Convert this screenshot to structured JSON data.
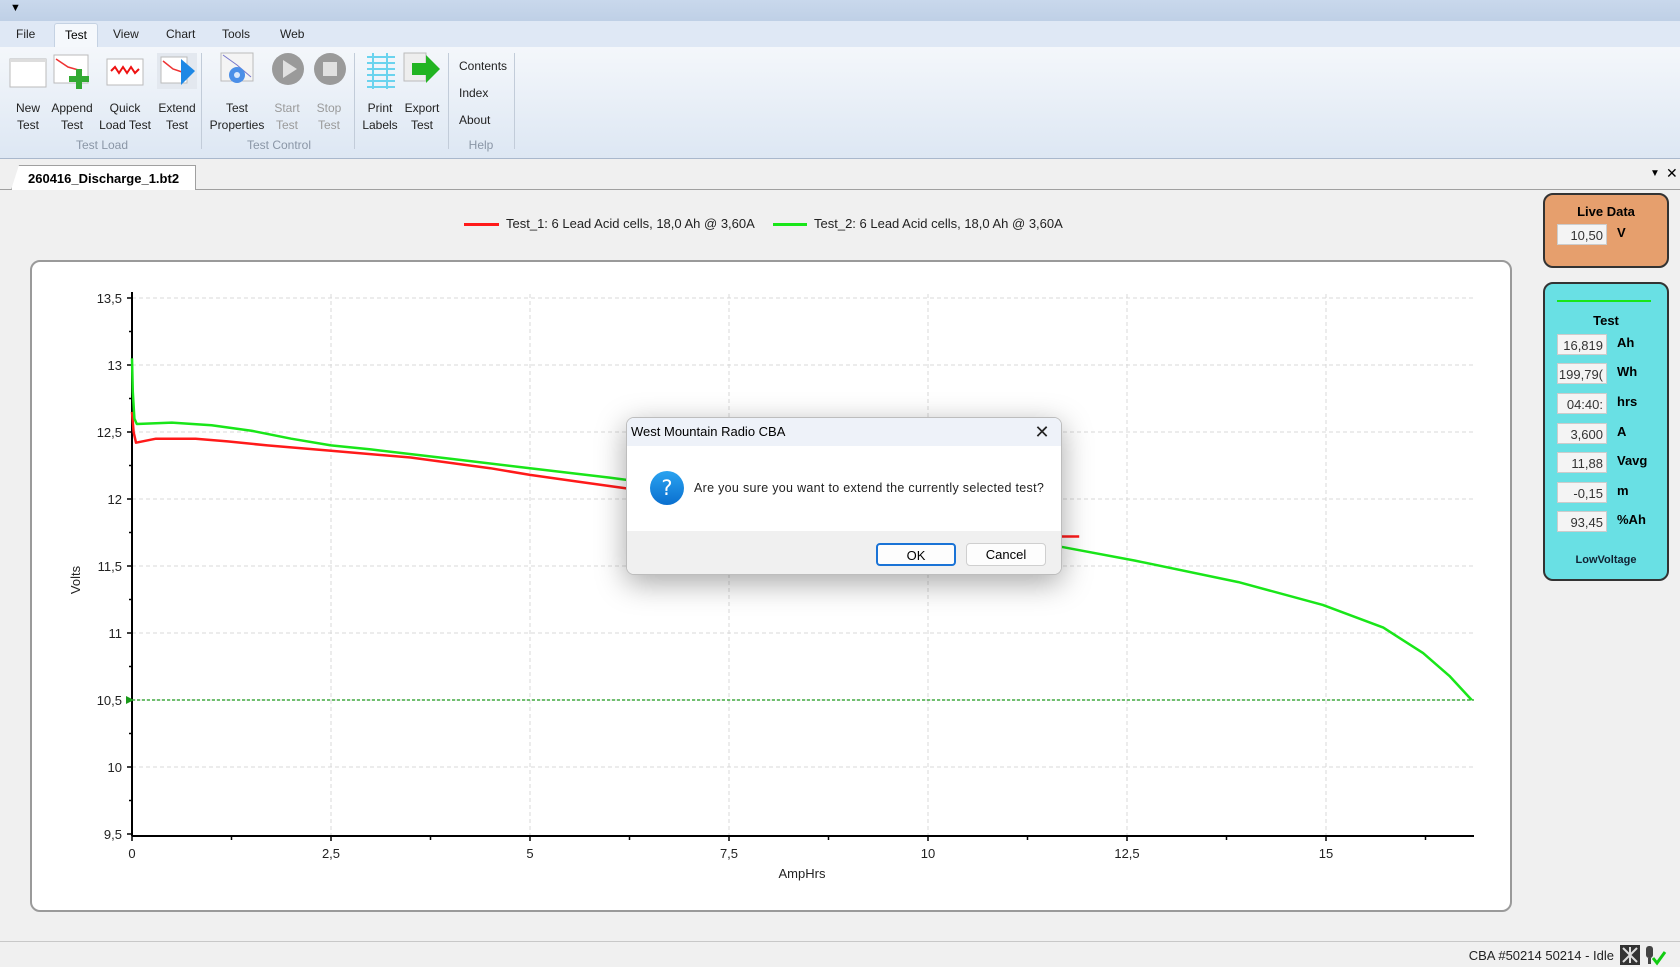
{
  "menu": [
    "File",
    "Test",
    "View",
    "Chart",
    "Tools",
    "Web"
  ],
  "ribbon": {
    "buttons": [
      {
        "l1": "New",
        "l2": "Test",
        "icon": "new-test-icon",
        "enabled": true
      },
      {
        "l1": "Append",
        "l2": "Test",
        "icon": "append-test-icon",
        "enabled": true
      },
      {
        "l1": "Quick",
        "l2": "Load Test",
        "icon": "quick-load-test-icon",
        "enabled": true
      },
      {
        "l1": "Extend",
        "l2": "Test",
        "icon": "extend-test-icon",
        "enabled": true
      },
      {
        "l1": "Test",
        "l2": "Properties",
        "icon": "test-properties-icon",
        "enabled": true
      },
      {
        "l1": "Start",
        "l2": "Test",
        "icon": "play-icon",
        "enabled": false
      },
      {
        "l1": "Stop",
        "l2": "Test",
        "icon": "stop-icon",
        "enabled": false
      },
      {
        "l1": "Print",
        "l2": "Labels",
        "icon": "print-labels-icon",
        "enabled": true
      },
      {
        "l1": "Export",
        "l2": "Test",
        "icon": "export-arrow-icon",
        "enabled": true
      }
    ],
    "help_links": [
      "Contents",
      "Index",
      "About"
    ],
    "groups": [
      "Test Load",
      "Test Control",
      "Help"
    ]
  },
  "document_tab": "260416_Discharge_1.bt2",
  "chart_data": {
    "type": "line",
    "xlabel": "AmpHrs",
    "ylabel": "Volts",
    "xlim": [
      0,
      16.85
    ],
    "ylim": [
      9.5,
      13.5
    ],
    "xticks": [
      "0",
      "2,5",
      "5",
      "7,5",
      "10",
      "12,5",
      "15"
    ],
    "yticks": [
      "9,5",
      "10",
      "10,5",
      "11",
      "11,5",
      "12",
      "12,5",
      "13",
      "13,5"
    ],
    "grid": true,
    "legend_position": "top-center",
    "cutoff_voltage": 10.5,
    "cutoff_color": "#1a9a1a",
    "series": [
      {
        "name": "Test_1: 6 Lead Acid cells, 18,0 Ah @ 3,60A",
        "color": "#ff1a1a",
        "x": [
          0,
          0.02,
          0.05,
          0.3,
          0.8,
          1.2,
          1.7,
          2.5,
          3.5,
          4.5,
          5,
          5.6,
          6.2,
          7.5,
          9,
          10.5,
          11.2,
          11.9
        ],
        "y": [
          12.65,
          12.5,
          12.42,
          12.45,
          12.45,
          12.43,
          12.4,
          12.36,
          12.31,
          12.23,
          12.18,
          12.13,
          12.08,
          11.98,
          11.88,
          11.78,
          11.72,
          11.72
        ]
      },
      {
        "name": "Test_2: 6 Lead Acid cells, 18,0 Ah @ 3,60A",
        "color": "#19e619",
        "x": [
          0,
          0.01,
          0.03,
          0.06,
          0.5,
          1,
          1.5,
          2,
          2.5,
          3,
          4,
          5,
          6,
          6.5,
          8,
          9.5,
          10.5,
          11.7,
          12.6,
          13.9,
          14.96,
          15.72,
          16.22,
          16.55,
          16.83
        ],
        "y": [
          13.05,
          12.8,
          12.6,
          12.56,
          12.57,
          12.55,
          12.51,
          12.45,
          12.4,
          12.37,
          12.3,
          12.23,
          12.16,
          12.12,
          12.0,
          11.86,
          11.76,
          11.64,
          11.54,
          11.38,
          11.21,
          11.04,
          10.85,
          10.68,
          10.5
        ]
      }
    ]
  },
  "live_data": {
    "title": "Live Data",
    "value": "10,50",
    "unit": "V"
  },
  "test_panel": {
    "title": "Test",
    "line_color": "#19e619",
    "rows": [
      {
        "value": "16,819",
        "unit": "Ah"
      },
      {
        "value": "199,79(",
        "unit": "Wh"
      },
      {
        "value": "04:40:",
        "unit": "hrs"
      },
      {
        "value": "3,600",
        "unit": "A"
      },
      {
        "value": "11,88",
        "unit": "Vavg"
      },
      {
        "value": "-0,15",
        "unit": "m"
      },
      {
        "value": "93,45",
        "unit": "%Ah"
      }
    ],
    "status": "LowVoltage"
  },
  "status_bar": {
    "text": "CBA #50214 50214 - Idle"
  },
  "dialog": {
    "title": "West Mountain Radio CBA",
    "message": "Are you sure you want to extend the currently selected test?",
    "ok": "OK",
    "cancel": "Cancel"
  }
}
